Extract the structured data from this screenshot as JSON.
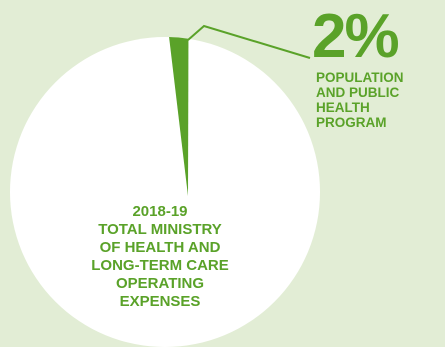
{
  "chart_data": {
    "type": "pie",
    "slices": [
      {
        "label": "POPULATION AND PUBLIC HEALTH PROGRAM",
        "value": 2,
        "color": "#5aa229"
      },
      {
        "label": "",
        "value": 98,
        "color": "#ffffff"
      }
    ],
    "callout": {
      "value_text": "2%",
      "label_lines": [
        "POPULATION",
        "AND PUBLIC",
        "HEALTH",
        "PROGRAM"
      ]
    },
    "center_label_lines": [
      "2018-19",
      "TOTAL MINISTRY",
      "OF HEALTH AND",
      "LONG-TERM CARE",
      "OPERATING",
      "EXPENSES"
    ]
  }
}
